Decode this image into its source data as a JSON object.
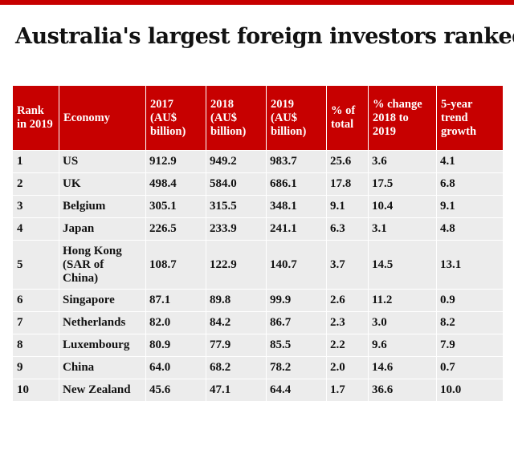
{
  "title": "Australia's largest foreign investors ranked",
  "colors": {
    "header_bg": "#c70000",
    "row_bg": "#ececec",
    "text": "#121212"
  },
  "columns": [
    "Rank in 2019",
    "Economy",
    "2017 (AU$ billion)",
    "2018 (AU$ billion)",
    "2019 (AU$ billion)",
    "% of total",
    "% change 2018 to 2019",
    "5-year trend growth"
  ],
  "rows": [
    [
      "1",
      "US",
      "912.9",
      "949.2",
      "983.7",
      "25.6",
      "3.6",
      "4.1"
    ],
    [
      "2",
      "UK",
      "498.4",
      "584.0",
      "686.1",
      "17.8",
      "17.5",
      "6.8"
    ],
    [
      "3",
      "Belgium",
      "305.1",
      "315.5",
      "348.1",
      "9.1",
      "10.4",
      "9.1"
    ],
    [
      "4",
      "Japan",
      "226.5",
      "233.9",
      "241.1",
      "6.3",
      "3.1",
      "4.8"
    ],
    [
      "5",
      "Hong Kong (SAR of China)",
      "108.7",
      "122.9",
      "140.7",
      "3.7",
      "14.5",
      "13.1"
    ],
    [
      "6",
      "Singapore",
      "87.1",
      "89.8",
      "99.9",
      "2.6",
      "11.2",
      "0.9"
    ],
    [
      "7",
      "Netherlands",
      "82.0",
      "84.2",
      "86.7",
      "2.3",
      "3.0",
      "8.2"
    ],
    [
      "8",
      "Luxembourg",
      "80.9",
      "77.9",
      "85.5",
      "2.2",
      "9.6",
      "7.9"
    ],
    [
      "9",
      "China",
      "64.0",
      "68.2",
      "78.2",
      "2.0",
      "14.6",
      "0.7"
    ],
    [
      "10",
      "New Zealand",
      "45.6",
      "47.1",
      "64.4",
      "1.7",
      "36.6",
      "10.0"
    ]
  ]
}
